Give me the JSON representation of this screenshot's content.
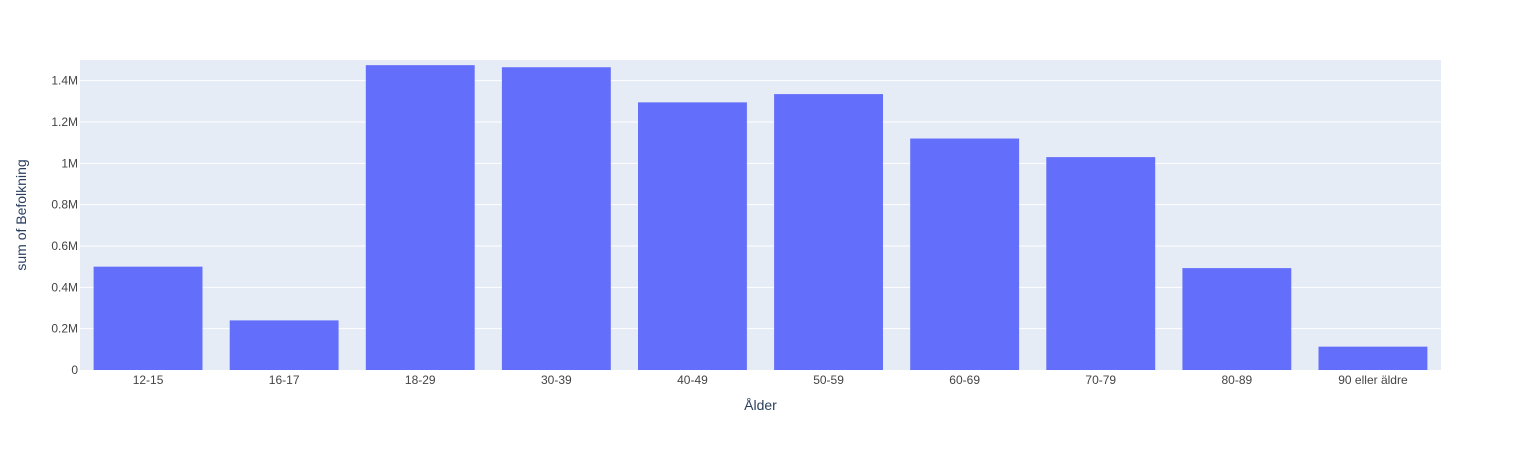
{
  "chart_data": {
    "type": "bar",
    "title": "",
    "xlabel": "Ålder",
    "ylabel": "sum of Befolkning",
    "categories": [
      "12-15",
      "16-17",
      "18-29",
      "30-39",
      "40-49",
      "50-59",
      "60-69",
      "70-79",
      "80-89",
      "90 eller äldre"
    ],
    "values": [
      500000,
      240000,
      1475000,
      1465000,
      1295000,
      1335000,
      1120000,
      1030000,
      493000,
      113000
    ],
    "ylim": [
      0,
      1500000
    ],
    "yticks": [
      {
        "value": 0,
        "label": "0"
      },
      {
        "value": 200000,
        "label": "0.2M"
      },
      {
        "value": 400000,
        "label": "0.4M"
      },
      {
        "value": 600000,
        "label": "0.6M"
      },
      {
        "value": 800000,
        "label": "0.8M"
      },
      {
        "value": 1000000,
        "label": "1M"
      },
      {
        "value": 1200000,
        "label": "1.2M"
      },
      {
        "value": 1400000,
        "label": "1.4M"
      }
    ],
    "grid": true,
    "legend": "none",
    "colors": {
      "bar": "#636efa",
      "plot_background": "#e5ecf6",
      "grid": "#ffffff",
      "text": "#444444",
      "axis_title": "#2a3f5f"
    }
  }
}
